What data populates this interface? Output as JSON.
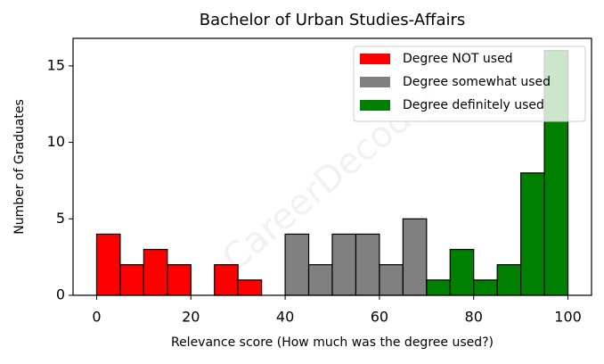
{
  "chart_data": {
    "type": "histogram",
    "title": "Bachelor of Urban Studies-Affairs",
    "x_label": "Relevance score (How much was the degree used?)",
    "y_label": "Number of Graduates",
    "watermark": "CareerDecoder",
    "series": [
      {
        "name": "Degree NOT used",
        "color": "#ff0000",
        "bins": [
          0,
          5,
          10,
          15,
          20,
          25,
          30,
          35,
          40
        ],
        "counts": [
          4,
          2,
          3,
          2,
          0,
          2,
          1,
          0
        ]
      },
      {
        "name": "Degree somewhat used",
        "color": "#808080",
        "bins": [
          40,
          45,
          50,
          55,
          60,
          65,
          70
        ],
        "counts": [
          4,
          2,
          4,
          4,
          2,
          5
        ]
      },
      {
        "name": "Degree definitely used",
        "color": "#008000",
        "bins": [
          70,
          75,
          80,
          85,
          90,
          95,
          100
        ],
        "counts": [
          1,
          3,
          1,
          2,
          8,
          16
        ]
      }
    ],
    "xlim": [
      -5,
      105
    ],
    "xticks": [
      0,
      20,
      40,
      60,
      80,
      100
    ],
    "ylim": [
      0,
      16.8
    ],
    "yticks": [
      0,
      5,
      10,
      15
    ],
    "legend": "upper right"
  }
}
